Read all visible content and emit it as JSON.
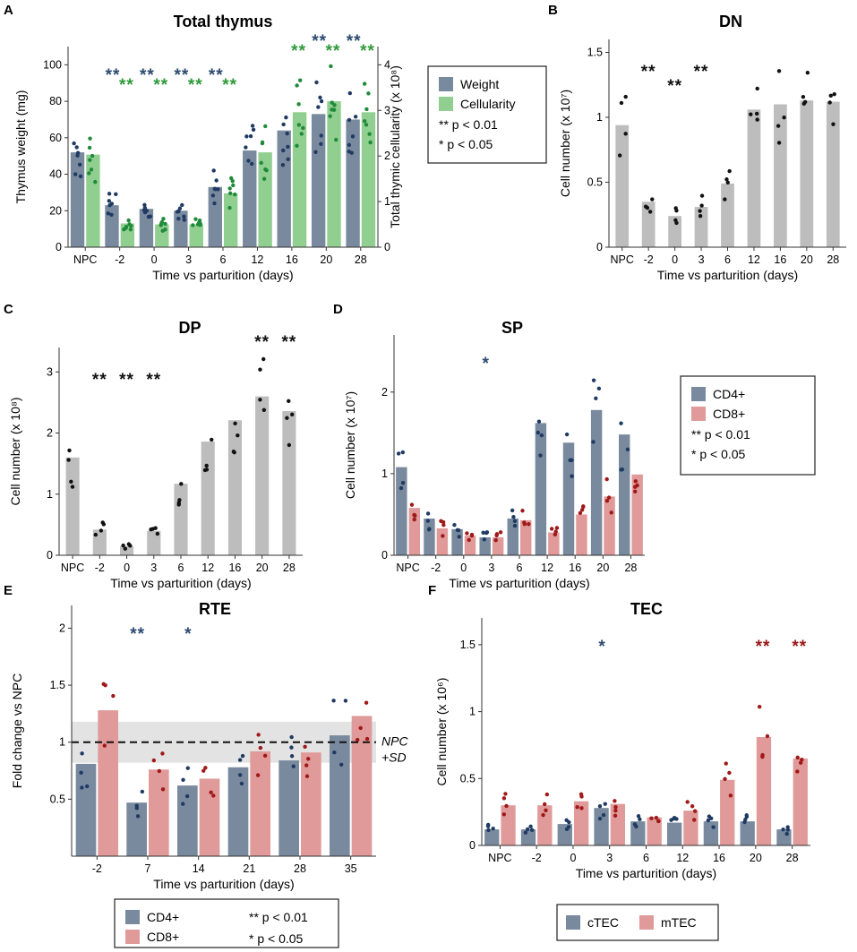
{
  "colors": {
    "weight": "#7a8a9e",
    "cellularity": "#91cf91",
    "single": "#bdbdbd",
    "cd4": "#7a8a9e",
    "cd8": "#e09a9a",
    "dot_blue": "#1f3a63",
    "dot_green": "#1f8a3a",
    "dot_red": "#a01818",
    "dot_black": "#111111",
    "sig_blue": "#2d4a70",
    "sig_green": "#2f9a3a",
    "sig_red": "#9a1515",
    "sig_black": "#111111",
    "band": "#e3e3e3"
  },
  "legends": {
    "A": {
      "items": [
        "Weight",
        "Cellularity"
      ],
      "sig": [
        "** p < 0.01",
        "* p < 0.05"
      ]
    },
    "D": {
      "items": [
        "CD4+",
        "CD8+"
      ],
      "sig": [
        "** p < 0.01",
        "* p < 0.05"
      ]
    },
    "E": {
      "items": [
        "CD4+",
        "CD8+"
      ],
      "sig": [
        "** p < 0.01",
        "* p < 0.05"
      ]
    },
    "F": {
      "items": [
        "cTEC",
        "mTEC"
      ]
    }
  },
  "chart_data": [
    {
      "panel": "A",
      "type": "bar",
      "title": "Total thymus",
      "xlabel": "Time vs parturition (days)",
      "ylabel": "Thymus weight (mg)",
      "y2label": "Total thymic cellularity (x 10⁸)",
      "categories": [
        "NPC",
        "-2",
        "0",
        "3",
        "6",
        "12",
        "16",
        "20",
        "28"
      ],
      "ylim": [
        0,
        110
      ],
      "y2lim": [
        0,
        4.4
      ],
      "yticks": [
        0,
        20,
        40,
        60,
        80,
        100
      ],
      "y2ticks": [
        0,
        1,
        2,
        3,
        4
      ],
      "series": [
        {
          "name": "Weight",
          "axis": "left",
          "values": [
            52,
            23,
            21,
            20,
            33,
            53,
            64,
            73,
            70
          ]
        },
        {
          "name": "Cellularity",
          "axis": "right",
          "values": [
            2.03,
            0.52,
            0.5,
            0.5,
            1.18,
            2.08,
            2.96,
            3.2,
            2.96
          ]
        }
      ],
      "significance": [
        {
          "series": "Weight",
          "category": "-2",
          "label": "**"
        },
        {
          "series": "Weight",
          "category": "0",
          "label": "**"
        },
        {
          "series": "Weight",
          "category": "3",
          "label": "**"
        },
        {
          "series": "Weight",
          "category": "6",
          "label": "**"
        },
        {
          "series": "Weight",
          "category": "20",
          "label": "**"
        },
        {
          "series": "Weight",
          "category": "28",
          "label": "**"
        },
        {
          "series": "Cellularity",
          "category": "-2",
          "label": "**"
        },
        {
          "series": "Cellularity",
          "category": "0",
          "label": "**"
        },
        {
          "series": "Cellularity",
          "category": "3",
          "label": "**"
        },
        {
          "series": "Cellularity",
          "category": "6",
          "label": "**"
        },
        {
          "series": "Cellularity",
          "category": "16",
          "label": "**"
        },
        {
          "series": "Cellularity",
          "category": "20",
          "label": "**"
        },
        {
          "series": "Cellularity",
          "category": "28",
          "label": "**"
        }
      ]
    },
    {
      "panel": "B",
      "type": "bar",
      "title": "DN",
      "xlabel": "Time vs parturition (days)",
      "ylabel": "Cell number (x 10⁷)",
      "categories": [
        "NPC",
        "-2",
        "0",
        "3",
        "6",
        "12",
        "16",
        "20",
        "28"
      ],
      "ylim": [
        0,
        1.6
      ],
      "yticks": [
        0,
        0.5,
        1,
        1.5
      ],
      "series": [
        {
          "name": "DN",
          "values": [
            0.94,
            0.35,
            0.24,
            0.31,
            0.49,
            1.06,
            1.1,
            1.13,
            1.12
          ]
        }
      ],
      "significance": [
        {
          "category": "-2",
          "label": "**"
        },
        {
          "category": "0",
          "label": "**"
        },
        {
          "category": "3",
          "label": "**"
        }
      ]
    },
    {
      "panel": "C",
      "type": "bar",
      "title": "DP",
      "xlabel": "Time vs parturition (days)",
      "ylabel": "Cell number (x 10⁸)",
      "categories": [
        "NPC",
        "-2",
        "0",
        "3",
        "6",
        "12",
        "16",
        "20",
        "28"
      ],
      "ylim": [
        0,
        3.4
      ],
      "yticks": [
        0,
        1,
        2,
        3
      ],
      "series": [
        {
          "name": "DP",
          "values": [
            1.6,
            0.42,
            0.15,
            0.4,
            1.17,
            1.86,
            2.21,
            2.6,
            2.36
          ]
        }
      ],
      "significance": [
        {
          "category": "-2",
          "label": "**"
        },
        {
          "category": "0",
          "label": "**"
        },
        {
          "category": "3",
          "label": "**"
        },
        {
          "category": "20",
          "label": "**"
        },
        {
          "category": "28",
          "label": "**"
        }
      ]
    },
    {
      "panel": "D",
      "type": "bar",
      "title": "SP",
      "xlabel": "Time vs parturition (days)",
      "ylabel": "Cell number (x 10⁷)",
      "categories": [
        "NPC",
        "-2",
        "0",
        "3",
        "6",
        "12",
        "16",
        "20",
        "28"
      ],
      "ylim": [
        0,
        2.7
      ],
      "yticks": [
        0,
        1,
        2
      ],
      "series": [
        {
          "name": "CD4+",
          "values": [
            1.08,
            0.45,
            0.32,
            0.22,
            0.45,
            1.62,
            1.38,
            1.78,
            1.48
          ]
        },
        {
          "name": "CD8+",
          "values": [
            0.58,
            0.33,
            0.24,
            0.22,
            0.43,
            0.28,
            0.5,
            0.72,
            0.99
          ]
        }
      ],
      "significance": [
        {
          "series": "CD4+",
          "category": "3",
          "label": "*"
        }
      ]
    },
    {
      "panel": "E",
      "type": "bar",
      "title": "RTE",
      "xlabel": "Time vs parturition (days)",
      "ylabel": "Fold change vs NPC",
      "categories": [
        "-2",
        "7",
        "14",
        "21",
        "28",
        "35"
      ],
      "ylim": [
        0,
        2.2
      ],
      "yticks": [
        0.5,
        1.0,
        1.5,
        2.0
      ],
      "series": [
        {
          "name": "CD4+",
          "values": [
            0.81,
            0.47,
            0.62,
            0.78,
            0.84,
            1.06
          ]
        },
        {
          "name": "CD8+",
          "values": [
            1.28,
            0.76,
            0.68,
            0.92,
            0.91,
            1.23
          ]
        }
      ],
      "reference": {
        "value": 1.0,
        "band": [
          0.82,
          1.18
        ],
        "labels": [
          "NPC",
          "+SD"
        ]
      },
      "significance": [
        {
          "series": "CD4+",
          "category": "7",
          "label": "**"
        },
        {
          "series": "CD4+",
          "category": "14",
          "label": "*"
        }
      ]
    },
    {
      "panel": "F",
      "type": "bar",
      "title": "TEC",
      "xlabel": "Time vs parturition (days)",
      "ylabel": "Cell number (x 10⁶)",
      "categories": [
        "NPC",
        "-2",
        "0",
        "3",
        "6",
        "12",
        "16",
        "20",
        "28"
      ],
      "ylim": [
        0,
        1.7
      ],
      "yticks": [
        0,
        0.5,
        1,
        1.5
      ],
      "series": [
        {
          "name": "cTEC",
          "values": [
            0.12,
            0.12,
            0.16,
            0.28,
            0.18,
            0.17,
            0.18,
            0.18,
            0.12
          ]
        },
        {
          "name": "mTEC",
          "values": [
            0.3,
            0.3,
            0.33,
            0.31,
            0.21,
            0.26,
            0.49,
            0.81,
            0.65
          ]
        }
      ],
      "significance": [
        {
          "series": "cTEC",
          "category": "3",
          "label": "*"
        },
        {
          "series": "mTEC",
          "category": "20",
          "label": "**"
        },
        {
          "series": "mTEC",
          "category": "28",
          "label": "**"
        }
      ]
    }
  ]
}
